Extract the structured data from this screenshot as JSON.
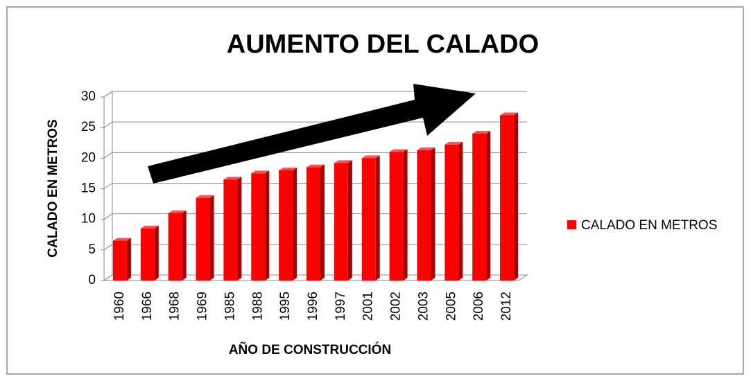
{
  "chart_data": {
    "type": "bar",
    "title": "AUMENTO DEL CALADO",
    "x_label": "AÑO DE CONSTRUCCIÓN",
    "y_label": "CALADO EN METROS",
    "categories": [
      "1960",
      "1966",
      "1968",
      "1969",
      "1985",
      "1988",
      "1995",
      "1996",
      "1997",
      "2001",
      "2002",
      "2003",
      "2005",
      "2006",
      "2012"
    ],
    "series": [
      {
        "name": "CALADO EN METROS",
        "color": "#ff0000",
        "values": [
          6.5,
          8.5,
          11,
          13.5,
          16.5,
          17.5,
          18,
          18.5,
          19.2,
          20,
          21,
          21.3,
          22.2,
          24,
          27
        ]
      }
    ],
    "ylim": [
      0,
      30
    ],
    "yticks": [
      0,
      5,
      10,
      15,
      20,
      25,
      30
    ],
    "grid": true,
    "legend": "right"
  }
}
